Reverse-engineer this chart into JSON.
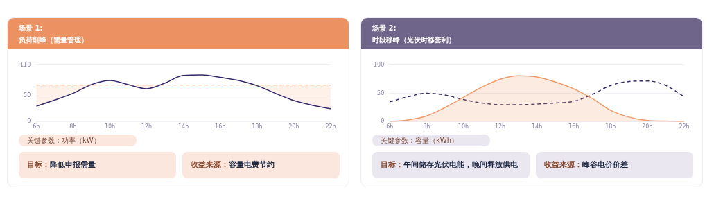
{
  "chart_data": [
    {
      "type": "line",
      "title": "场景 1:",
      "subtitle": "负荷削峰（需量管理）",
      "x": [
        6,
        7,
        8,
        9,
        10,
        11,
        12,
        13,
        14,
        15,
        16,
        17,
        18,
        19,
        20,
        21,
        22
      ],
      "series": [
        {
          "color": "#35286a",
          "values": [
            30,
            42,
            55,
            72,
            80,
            72,
            64,
            75,
            90,
            91,
            86,
            80,
            70,
            55,
            41,
            32,
            25
          ]
        }
      ],
      "ref_lines": [
        {
          "axis": "y",
          "value": 71,
          "color": "#f0a070",
          "line_style": "dashed"
        }
      ],
      "xlim": [
        6,
        22
      ],
      "xticks": [
        {
          "value": 6,
          "label": "6h"
        },
        {
          "value": 8,
          "label": "8h"
        },
        {
          "value": 10,
          "label": "10h"
        },
        {
          "value": 12,
          "label": "12h"
        },
        {
          "value": 14,
          "label": "14h"
        },
        {
          "value": 16,
          "label": "16h"
        },
        {
          "value": 18,
          "label": "18h"
        },
        {
          "value": 20,
          "label": "20h"
        },
        {
          "value": 22,
          "label": "22h"
        }
      ],
      "ylim": [
        0,
        110
      ],
      "yticks": [
        0,
        50,
        110
      ],
      "grid": "y",
      "legend": false,
      "marker": "none",
      "annotations": [
        "关键参数：功率（kW）",
        "目标：降低申报需量",
        "收益来源：容量电费节约"
      ]
    },
    {
      "type": "line",
      "title": "场景 2:",
      "subtitle": "时段移峰（光伏时移套利）",
      "x": [
        6,
        7,
        8,
        9,
        10,
        11,
        12,
        13,
        14,
        15,
        16,
        17,
        18,
        19,
        20,
        21,
        22
      ],
      "series": [
        {
          "type": "area",
          "color": "#f09a68",
          "values": [
            0,
            3,
            10,
            25,
            43,
            61,
            75,
            81,
            79,
            70,
            58,
            41,
            20,
            8,
            2,
            1,
            0
          ]
        },
        {
          "color": "#3b2c6b",
          "line_style": "dashed",
          "values": [
            35,
            44,
            50,
            47,
            39,
            33,
            30,
            30,
            31,
            33,
            36,
            48,
            64,
            71,
            72,
            64,
            44
          ]
        }
      ],
      "xlim": [
        6,
        22
      ],
      "xticks": [
        {
          "value": 6,
          "label": "6h"
        },
        {
          "value": 8,
          "label": "8h"
        },
        {
          "value": 10,
          "label": "10h"
        },
        {
          "value": 12,
          "label": "12h"
        },
        {
          "value": 14,
          "label": "14h"
        },
        {
          "value": 16,
          "label": "16h"
        },
        {
          "value": 18,
          "label": "18h"
        },
        {
          "value": 20,
          "label": "20h"
        },
        {
          "value": 22,
          "label": "22h"
        }
      ],
      "ylim": [
        0,
        100
      ],
      "yticks": [
        0,
        50,
        100
      ],
      "grid": "y",
      "legend": false,
      "marker": "none",
      "annotations": [
        "关键参数：容量（kWh）",
        "目标：午间储存光伏电能，晚间释放供电",
        "收益来源：峰谷电价价差"
      ]
    }
  ]
}
